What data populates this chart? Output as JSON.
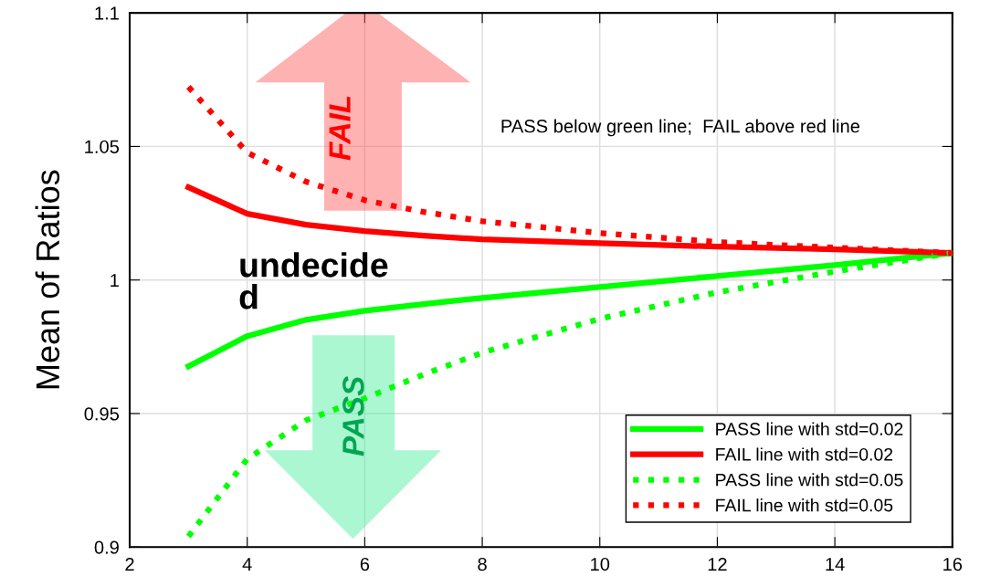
{
  "chart_data": {
    "type": "line",
    "ylabel": "Mean of Ratios",
    "x": [
      3,
      4,
      5,
      6,
      7,
      8,
      10,
      12,
      14,
      16
    ],
    "series": [
      {
        "name": "PASS line with std=0.02",
        "color": "#00ff00",
        "line_style": "solid",
        "values": [
          0.9677,
          0.979,
          0.9851,
          0.9885,
          0.991,
          0.9933,
          0.9974,
          1.0015,
          1.0056,
          1.0101
        ]
      },
      {
        "name": "FAIL line with std=0.02",
        "color": "#ff0000",
        "line_style": "solid",
        "values": [
          1.0347,
          1.0248,
          1.0207,
          1.0183,
          1.0166,
          1.0152,
          1.0138,
          1.0125,
          1.0115,
          1.0101
        ]
      },
      {
        "name": "PASS line with std=0.05",
        "color": "#00ff00",
        "line_style": "dotted",
        "values": [
          0.904,
          0.933,
          0.9475,
          0.9557,
          0.9646,
          0.9728,
          0.9855,
          0.9954,
          1.0032,
          1.0101
        ]
      },
      {
        "name": "FAIL line with std=0.05",
        "color": "#ff0000",
        "line_style": "dotted",
        "values": [
          1.0723,
          1.0477,
          1.0368,
          1.0299,
          1.0255,
          1.022,
          1.0176,
          1.0142,
          1.0121,
          1.0101
        ]
      }
    ],
    "xlim": [
      2,
      16
    ],
    "xticks": [
      2,
      4,
      6,
      8,
      10,
      12,
      14,
      16
    ],
    "ylim": [
      0.9,
      1.1
    ],
    "yticks": [
      0.9,
      0.95,
      1,
      1.05,
      1.1
    ],
    "grid": true,
    "legend": "bottom right",
    "annotations": [
      "PASS below green line;  FAIL above red line",
      "undecide\nd",
      "FAIL",
      "PASS"
    ]
  }
}
